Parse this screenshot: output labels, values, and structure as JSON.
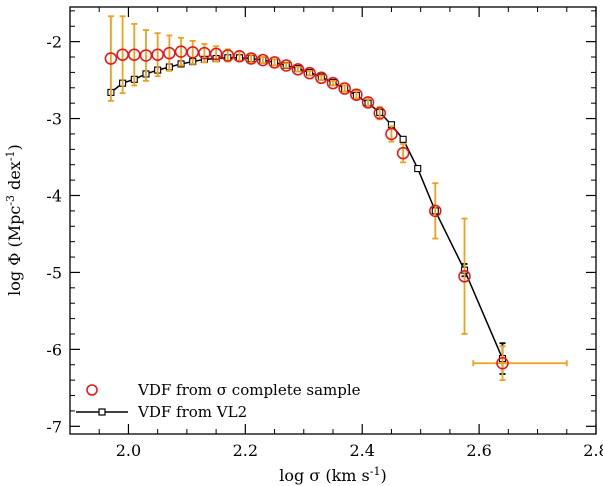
{
  "chart_data": {
    "type": "scatter",
    "xlim": [
      1.9,
      2.8
    ],
    "ylim": [
      -7.1,
      -1.55
    ],
    "xticks": [
      2.0,
      2.2,
      2.4,
      2.6,
      2.8
    ],
    "yticks": [
      -7,
      -6,
      -5,
      -4,
      -3,
      -2
    ],
    "xtick_labels": [
      "2.0",
      "2.2",
      "2.4",
      "2.6",
      "2.8"
    ],
    "ytick_labels": [
      "-7",
      "-6",
      "-5",
      "-4",
      "-3",
      "-2"
    ],
    "xlabel": {
      "pre": "log σ (km s",
      "sup": "-1",
      "post": ")"
    },
    "ylabel": {
      "pre": "log Φ (Mpc",
      "sup1": "-3",
      "mid": " dex",
      "sup2": "-1",
      "post": ")"
    },
    "legend_position": "bottom-left",
    "colors": {
      "circles": "#ee1111",
      "errorbars": "#f0a01a",
      "line": "#000000",
      "line_errorbars": "#000000"
    },
    "series": [
      {
        "name": "VDF from σ complete sample",
        "marker": "open-circle",
        "x": [
          1.97,
          1.99,
          2.01,
          2.03,
          2.05,
          2.07,
          2.09,
          2.11,
          2.13,
          2.15,
          2.17,
          2.19,
          2.21,
          2.23,
          2.25,
          2.27,
          2.29,
          2.31,
          2.33,
          2.35,
          2.37,
          2.39,
          2.41,
          2.43,
          2.45,
          2.47,
          2.525,
          2.575,
          2.64
        ],
        "y": [
          -2.22,
          -2.17,
          -2.17,
          -2.18,
          -2.17,
          -2.15,
          -2.13,
          -2.14,
          -2.15,
          -2.16,
          -2.18,
          -2.19,
          -2.22,
          -2.24,
          -2.27,
          -2.31,
          -2.36,
          -2.41,
          -2.47,
          -2.54,
          -2.61,
          -2.69,
          -2.79,
          -2.93,
          -3.2,
          -3.45,
          -4.2,
          -5.05,
          -6.18
        ],
        "yerr": [
          0.55,
          0.5,
          0.4,
          0.33,
          0.28,
          0.23,
          0.18,
          0.15,
          0.12,
          0.1,
          0.08,
          0.06,
          0.05,
          0.04,
          0.04,
          0.03,
          0.03,
          0.03,
          0.03,
          0.03,
          0.04,
          0.05,
          0.06,
          0.08,
          0.1,
          0.12,
          0.36,
          0.75,
          0.22
        ],
        "xerr_last": [
          0.05,
          0.11
        ]
      },
      {
        "name": "VDF from VL2",
        "marker": "open-square",
        "x": [
          1.97,
          1.99,
          2.01,
          2.03,
          2.05,
          2.07,
          2.09,
          2.11,
          2.13,
          2.15,
          2.17,
          2.19,
          2.21,
          2.23,
          2.25,
          2.27,
          2.29,
          2.31,
          2.33,
          2.35,
          2.37,
          2.39,
          2.41,
          2.43,
          2.45,
          2.47,
          2.495,
          2.525,
          2.575,
          2.64
        ],
        "y": [
          -2.66,
          -2.54,
          -2.49,
          -2.42,
          -2.37,
          -2.33,
          -2.29,
          -2.26,
          -2.23,
          -2.22,
          -2.21,
          -2.21,
          -2.22,
          -2.24,
          -2.27,
          -2.31,
          -2.35,
          -2.4,
          -2.46,
          -2.53,
          -2.61,
          -2.7,
          -2.8,
          -2.92,
          -3.08,
          -3.27,
          -3.65,
          -4.2,
          -4.97,
          -6.12
        ],
        "yerr": [
          0.02,
          0.02,
          0.02,
          0.02,
          0.02,
          0.02,
          0.02,
          0.02,
          0.02,
          0.02,
          0.02,
          0.02,
          0.02,
          0.02,
          0.02,
          0.02,
          0.02,
          0.02,
          0.02,
          0.02,
          0.02,
          0.02,
          0.02,
          0.03,
          0.03,
          0.04,
          0.03,
          0.03,
          0.08,
          0.2
        ]
      }
    ]
  }
}
